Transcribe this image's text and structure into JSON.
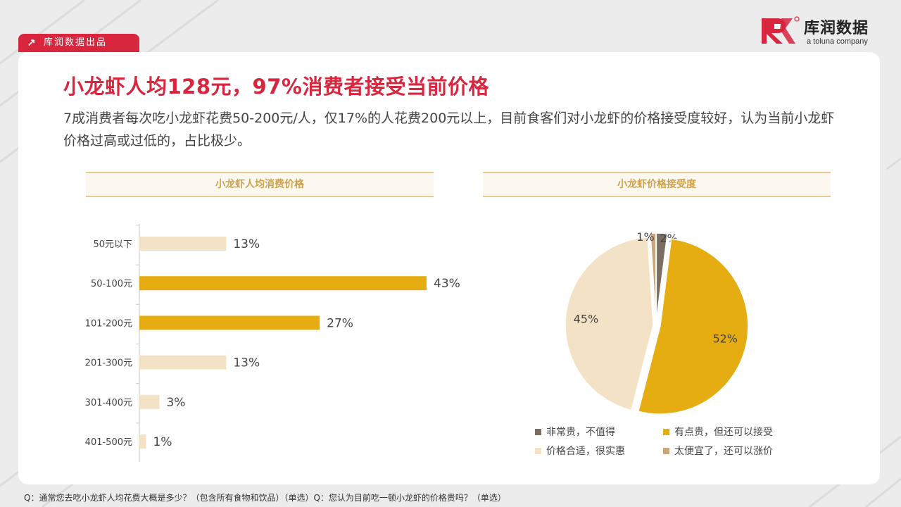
{
  "tag": {
    "label": "库润数据出品"
  },
  "logo": {
    "name": "库润数据",
    "sub": "a toluna company"
  },
  "title": "小龙虾人均128元，97%消费者接受当前价格",
  "subtitle": "7成消费者每次吃小龙虾花费50-200元/人，仅17%的人花费200元以上，目前食客们对小龙虾的价格接受度较好，认为当前小龙虾价格过高或过低的，占比极少。",
  "colors": {
    "brand_red": "#d7263d",
    "gold": "#e6ad12",
    "light": "#f3e2c5",
    "dark": "#7a6e62",
    "tan": "#c9a77c"
  },
  "chart_data": [
    {
      "type": "bar",
      "orientation": "horizontal",
      "title": "小龙虾人均消费价格",
      "categories": [
        "50元以下",
        "50-100元",
        "101-200元",
        "201-300元",
        "301-400元",
        "401-500元"
      ],
      "values": [
        13,
        43,
        27,
        13,
        3,
        1
      ],
      "value_labels": [
        "13%",
        "43%",
        "27%",
        "13%",
        "3%",
        "1%"
      ],
      "unit": "%",
      "highlight": [
        false,
        true,
        true,
        false,
        false,
        false
      ],
      "xlim": [
        0,
        43
      ]
    },
    {
      "type": "pie",
      "title": "小龙虾价格接受度",
      "labels": [
        "非常贵，不值得",
        "有点贵，但还可以接受",
        "价格合适，很实惠",
        "太便宜了，还可以涨价"
      ],
      "values": [
        2,
        52,
        45,
        1
      ],
      "value_labels": [
        "2%",
        "52%",
        "45%",
        "1%"
      ],
      "colors": [
        "#7a6e62",
        "#e6ad12",
        "#f3e2c5",
        "#c9a77c"
      ],
      "legend": "bottom"
    }
  ],
  "footnote": "Q：通常您去吃小龙虾人均花费大概是多少？（包含所有食物和饮品）（单选）Q：您认为目前吃一顿小龙虾的价格贵吗？（单选）"
}
